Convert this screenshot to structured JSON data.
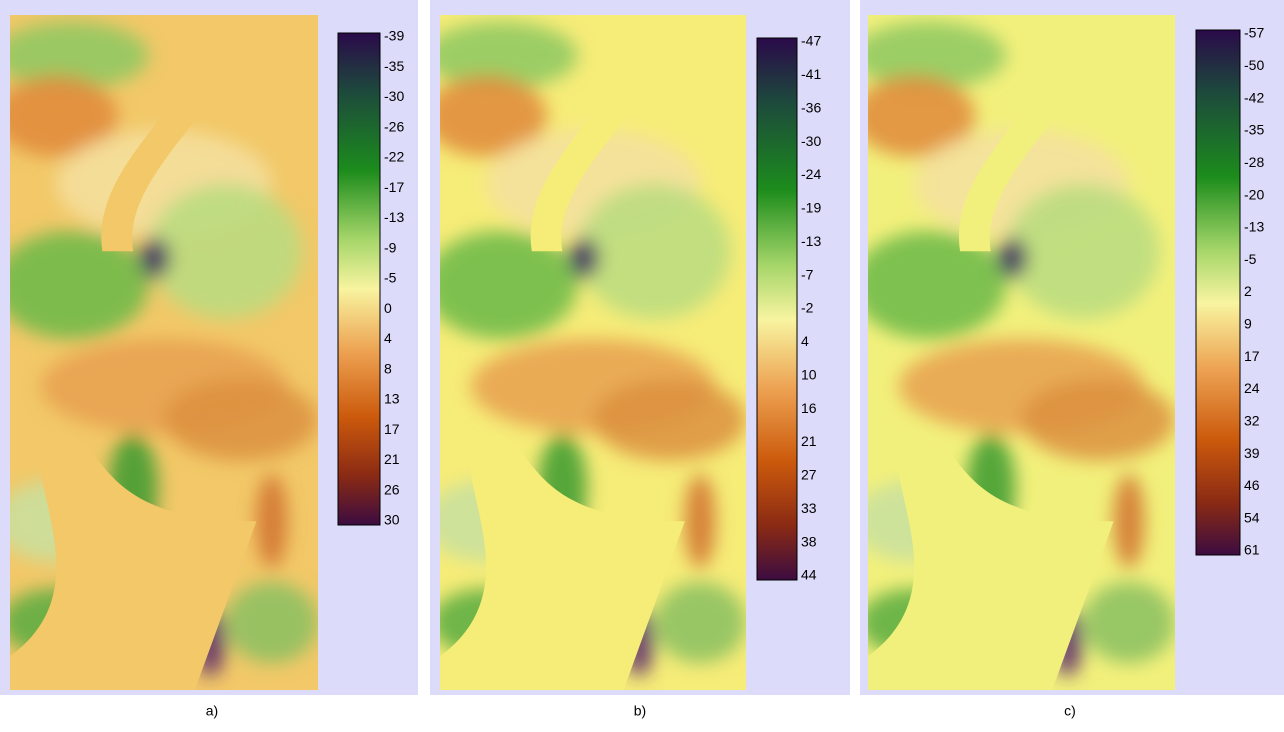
{
  "panels": [
    {
      "caption": "a)",
      "colorbar_ticks": [
        -39,
        -35,
        -30,
        -26,
        -22,
        -17,
        -13,
        -9,
        -5,
        0,
        4,
        8,
        13,
        17,
        21,
        26,
        30
      ]
    },
    {
      "caption": "b)",
      "colorbar_ticks": [
        -47,
        -41,
        -36,
        -30,
        -24,
        -19,
        -13,
        -7,
        -2,
        4,
        10,
        16,
        21,
        27,
        33,
        38,
        44
      ]
    },
    {
      "caption": "c)",
      "colorbar_ticks": [
        -57,
        -50,
        -42,
        -35,
        -28,
        -20,
        -13,
        -5,
        2,
        9,
        17,
        24,
        32,
        39,
        46,
        54,
        61
      ]
    }
  ]
}
